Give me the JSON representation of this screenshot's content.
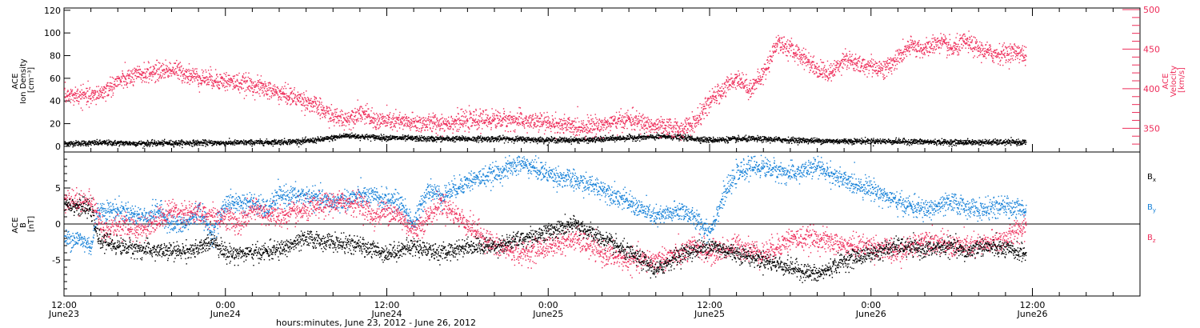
{
  "chart_data": [
    {
      "type": "scatter",
      "panel": "top",
      "ylabel_left": [
        "ACE",
        "Ion Density",
        "[cm⁻³]"
      ],
      "ylabel_right": [
        "ACE",
        "Velocity",
        "[km/s]"
      ],
      "ylim_left": [
        -5,
        122
      ],
      "ylim_right": [
        320,
        502
      ],
      "yticks_left": [
        0,
        20,
        40,
        60,
        80,
        100,
        120
      ],
      "yticks_right": [
        350,
        400,
        450,
        500
      ],
      "series": [
        {
          "axis": "left",
          "color": "#000000",
          "points": [
            [
              0,
              3
            ],
            [
              3,
              3.5
            ],
            [
              6,
              3
            ],
            [
              9,
              3.5
            ],
            [
              12,
              3.5
            ],
            [
              15,
              4
            ],
            [
              18,
              5
            ],
            [
              19.5,
              7
            ],
            [
              21,
              10
            ],
            [
              22,
              9
            ],
            [
              24,
              8
            ],
            [
              27,
              7
            ],
            [
              30,
              7
            ],
            [
              33,
              7
            ],
            [
              36,
              6
            ],
            [
              39,
              6
            ],
            [
              42,
              8
            ],
            [
              45,
              9
            ],
            [
              47,
              7
            ],
            [
              48,
              6
            ],
            [
              51,
              7
            ],
            [
              54,
              6
            ],
            [
              57,
              5
            ],
            [
              60,
              5
            ],
            [
              63,
              4.5
            ],
            [
              66,
              4
            ],
            [
              69,
              4
            ],
            [
              71.5,
              4
            ]
          ]
        },
        {
          "axis": "right",
          "color": "#ee2d5a",
          "points": [
            [
              0,
              392
            ],
            [
              1,
              392
            ],
            [
              2,
              390
            ],
            [
              3,
              398
            ],
            [
              4,
              410
            ],
            [
              6,
              420
            ],
            [
              8,
              425
            ],
            [
              10,
              415
            ],
            [
              12,
              410
            ],
            [
              14,
              405
            ],
            [
              16,
              395
            ],
            [
              18,
              385
            ],
            [
              20,
              365
            ],
            [
              21,
              362
            ],
            [
              22,
              372
            ],
            [
              23,
              360
            ],
            [
              24,
              360
            ],
            [
              26,
              357
            ],
            [
              28,
              357
            ],
            [
              30,
              360
            ],
            [
              32,
              362
            ],
            [
              34,
              360
            ],
            [
              36,
              357
            ],
            [
              38,
              352
            ],
            [
              40,
              355
            ],
            [
              42,
              362
            ],
            [
              44,
              352
            ],
            [
              46,
              350
            ],
            [
              47,
              360
            ],
            [
              48,
              385
            ],
            [
              49,
              400
            ],
            [
              50,
              415
            ],
            [
              51,
              400
            ],
            [
              52,
              420
            ],
            [
              53,
              460
            ],
            [
              54,
              450
            ],
            [
              55,
              440
            ],
            [
              56,
              425
            ],
            [
              57,
              420
            ],
            [
              58,
              440
            ],
            [
              59,
              430
            ],
            [
              60,
              430
            ],
            [
              61,
              425
            ],
            [
              62,
              440
            ],
            [
              63,
              455
            ],
            [
              64,
              450
            ],
            [
              65,
              460
            ],
            [
              66,
              450
            ],
            [
              67,
              460
            ],
            [
              68,
              450
            ],
            [
              69,
              445
            ],
            [
              70,
              445
            ],
            [
              71,
              448
            ],
            [
              71.5,
              440
            ]
          ]
        }
      ]
    },
    {
      "type": "scatter",
      "panel": "bottom",
      "ylabel": [
        "ACE",
        "B",
        "[nT]"
      ],
      "ylim": [
        -10,
        10
      ],
      "yticks": [
        -5,
        0,
        5
      ],
      "zero_line": true,
      "legend": [
        {
          "label": "B",
          "sub": "x",
          "color": "#000000"
        },
        {
          "label": "B",
          "sub": "y",
          "color": "#1480d8"
        },
        {
          "label": "B",
          "sub": "z",
          "color": "#ee2d5a"
        }
      ],
      "series": [
        {
          "name": "Bx",
          "color": "#000000",
          "points": [
            [
              0,
              3
            ],
            [
              2,
              2
            ],
            [
              2.5,
              -2
            ],
            [
              4,
              -3
            ],
            [
              6,
              -3.5
            ],
            [
              8,
              -3.8
            ],
            [
              10,
              -3.5
            ],
            [
              11,
              -2
            ],
            [
              12,
              -4
            ],
            [
              14,
              -4
            ],
            [
              16,
              -3.5
            ],
            [
              18,
              -2
            ],
            [
              20,
              -2.5
            ],
            [
              22,
              -3
            ],
            [
              24,
              -4
            ],
            [
              26,
              -3
            ],
            [
              28,
              -4
            ],
            [
              30,
              -3
            ],
            [
              32,
              -3
            ],
            [
              34,
              -2
            ],
            [
              36,
              -1
            ],
            [
              38,
              0
            ],
            [
              40,
              -2
            ],
            [
              42,
              -4
            ],
            [
              43,
              -5
            ],
            [
              44,
              -6.5
            ],
            [
              45,
              -5
            ],
            [
              46,
              -4
            ],
            [
              48,
              -3
            ],
            [
              50,
              -4
            ],
            [
              52,
              -5
            ],
            [
              54,
              -6
            ],
            [
              56,
              -7
            ],
            [
              58,
              -5
            ],
            [
              60,
              -4
            ],
            [
              62,
              -3
            ],
            [
              64,
              -3.5
            ],
            [
              66,
              -3
            ],
            [
              67,
              -4
            ],
            [
              68,
              -3
            ],
            [
              70,
              -3.5
            ],
            [
              71.5,
              -4
            ]
          ]
        },
        {
          "name": "By",
          "color": "#1480d8",
          "points": [
            [
              0,
              -2
            ],
            [
              1,
              -2
            ],
            [
              2,
              -3
            ],
            [
              2.5,
              2
            ],
            [
              4,
              2
            ],
            [
              6,
              1
            ],
            [
              7,
              2
            ],
            [
              8,
              0
            ],
            [
              9,
              0
            ],
            [
              10,
              2
            ],
            [
              11,
              -1.5
            ],
            [
              12,
              3
            ],
            [
              14,
              3
            ],
            [
              15,
              2
            ],
            [
              16,
              4
            ],
            [
              18,
              4
            ],
            [
              20,
              3
            ],
            [
              22,
              4
            ],
            [
              24,
              3.5
            ],
            [
              25,
              3
            ],
            [
              26,
              0
            ],
            [
              27,
              5
            ],
            [
              28,
              4
            ],
            [
              30,
              6
            ],
            [
              32,
              7
            ],
            [
              34,
              8.5
            ],
            [
              36,
              7
            ],
            [
              38,
              6
            ],
            [
              40,
              5
            ],
            [
              42,
              3
            ],
            [
              44,
              1
            ],
            [
              46,
              2
            ],
            [
              48,
              -1
            ],
            [
              49,
              4
            ],
            [
              50,
              7
            ],
            [
              51,
              8
            ],
            [
              52,
              8
            ],
            [
              54,
              7
            ],
            [
              56,
              8
            ],
            [
              58,
              6
            ],
            [
              60,
              5
            ],
            [
              62,
              3
            ],
            [
              64,
              2
            ],
            [
              66,
              3
            ],
            [
              68,
              2
            ],
            [
              70,
              2.5
            ],
            [
              71.5,
              2
            ]
          ]
        },
        {
          "name": "Bz",
          "color": "#ee2d5a",
          "points": [
            [
              0,
              3.5
            ],
            [
              2,
              3
            ],
            [
              3,
              -1
            ],
            [
              4,
              0
            ],
            [
              5,
              -0.5
            ],
            [
              6,
              -0.5
            ],
            [
              8,
              2
            ],
            [
              10,
              1.5
            ],
            [
              12,
              1
            ],
            [
              13,
              0
            ],
            [
              14,
              2
            ],
            [
              16,
              1
            ],
            [
              18,
              2
            ],
            [
              20,
              3
            ],
            [
              22,
              3
            ],
            [
              23,
              1
            ],
            [
              24,
              2
            ],
            [
              25,
              1
            ],
            [
              26,
              -1
            ],
            [
              28,
              3
            ],
            [
              30,
              0
            ],
            [
              32,
              -3
            ],
            [
              34,
              -4
            ],
            [
              36,
              -3
            ],
            [
              38,
              -2
            ],
            [
              40,
              -4
            ],
            [
              42,
              -5
            ],
            [
              44,
              -5
            ],
            [
              46,
              -4
            ],
            [
              47,
              -3
            ],
            [
              48,
              -4
            ],
            [
              50,
              -3
            ],
            [
              52,
              -4
            ],
            [
              54,
              -2
            ],
            [
              56,
              -2
            ],
            [
              58,
              -3
            ],
            [
              60,
              -3
            ],
            [
              62,
              -4
            ],
            [
              64,
              -2
            ],
            [
              66,
              -3
            ],
            [
              68,
              -3
            ],
            [
              70,
              -2
            ],
            [
              71.5,
              0
            ]
          ]
        }
      ]
    }
  ],
  "x_axis": {
    "range_hours": [
      0,
      80
    ],
    "major_ticks": [
      {
        "h": 0,
        "time": "12:00",
        "date": "June23"
      },
      {
        "h": 12,
        "time": "0:00",
        "date": "June24"
      },
      {
        "h": 24,
        "time": "12:00",
        "date": "June24"
      },
      {
        "h": 36,
        "time": "0:00",
        "date": "June25"
      },
      {
        "h": 48,
        "time": "12:00",
        "date": "June25"
      },
      {
        "h": 60,
        "time": "0:00",
        "date": "June26"
      },
      {
        "h": 72,
        "time": "12:00",
        "date": "June26"
      }
    ],
    "xlabel": "hours:minutes, June 23, 2012 - June 26, 2012"
  }
}
